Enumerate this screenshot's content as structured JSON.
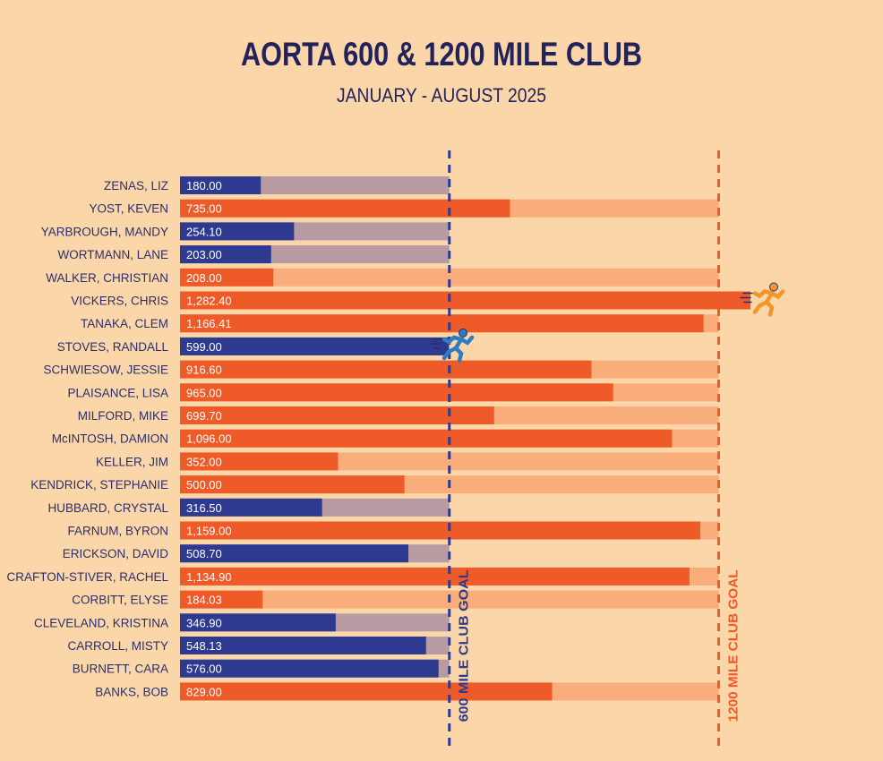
{
  "chart_data": {
    "type": "bar",
    "orientation": "horizontal",
    "title": "AORTA 600 & 1200 MILE CLUB",
    "subtitle": "JANUARY - AUGUST 2025",
    "xlim": [
      0,
      1200
    ],
    "goals": [
      {
        "value": 600,
        "label": "600 MILE CLUB GOAL",
        "color": "#2e3a8f"
      },
      {
        "value": 1200,
        "label": "1200 MILE CLUB GOAL",
        "color": "#ef5a29"
      }
    ],
    "colors": {
      "blue_fill": "#2e3a8f",
      "blue_track": "#b89aa2",
      "orange_fill": "#ef5a29",
      "orange_track": "#f9ad7a",
      "name_text": "#2b2e6e",
      "title_text": "#22225c",
      "value_text": "#ffffff",
      "runner_blue": "#2f7cc1",
      "runner_orange": "#f0962c"
    },
    "series": [
      {
        "name": "ZENAS, LIZ",
        "value": 180.0,
        "label": "180.00",
        "club": 600
      },
      {
        "name": "YOST, KEVEN",
        "value": 735.0,
        "label": "735.00",
        "club": 1200
      },
      {
        "name": "YARBROUGH, MANDY",
        "value": 254.1,
        "label": "254.10",
        "club": 600
      },
      {
        "name": "WORTMANN, LANE",
        "value": 203.0,
        "label": "203.00",
        "club": 600
      },
      {
        "name": "WALKER, CHRISTIAN",
        "value": 208.0,
        "label": "208.00",
        "club": 1200
      },
      {
        "name": "VICKERS, CHRIS",
        "value": 1282.4,
        "label": "1,282.40",
        "club": 1200
      },
      {
        "name": "TANAKA, CLEM",
        "value": 1166.41,
        "label": "1,166.41",
        "club": 1200
      },
      {
        "name": "STOVES, RANDALL",
        "value": 599.0,
        "label": "599.00",
        "club": 600
      },
      {
        "name": "SCHWIESOW, JESSIE",
        "value": 916.6,
        "label": "916.60",
        "club": 1200
      },
      {
        "name": "PLAISANCE, LISA",
        "value": 965.0,
        "label": "965.00",
        "club": 1200
      },
      {
        "name": "MILFORD, MIKE",
        "value": 699.7,
        "label": "699.70",
        "club": 1200
      },
      {
        "name": "McINTOSH, DAMION",
        "value": 1096.0,
        "label": "1,096.00",
        "club": 1200
      },
      {
        "name": "KELLER, JIM",
        "value": 352.0,
        "label": "352.00",
        "club": 1200
      },
      {
        "name": "KENDRICK, STEPHANIE",
        "value": 500.0,
        "label": "500.00",
        "club": 1200
      },
      {
        "name": "HUBBARD, CRYSTAL",
        "value": 316.5,
        "label": "316.50",
        "club": 600
      },
      {
        "name": "FARNUM, BYRON",
        "value": 1159.0,
        "label": "1,159.00",
        "club": 1200
      },
      {
        "name": "ERICKSON, DAVID",
        "value": 508.7,
        "label": "508.70",
        "club": 600
      },
      {
        "name": "CRAFTON-STIVER, RACHEL",
        "value": 1134.9,
        "label": "1,134.90",
        "club": 1200
      },
      {
        "name": "CORBITT, ELYSE",
        "value": 184.03,
        "label": "184.03",
        "club": 1200
      },
      {
        "name": "CLEVELAND, KRISTINA",
        "value": 346.9,
        "label": "346.90",
        "club": 600
      },
      {
        "name": "CARROLL, MISTY",
        "value": 548.13,
        "label": "548.13",
        "club": 600
      },
      {
        "name": "BURNETT, CARA",
        "value": 576.0,
        "label": "576.00",
        "club": 600
      },
      {
        "name": "BANKS, BOB",
        "value": 829.0,
        "label": "829.00",
        "club": 1200
      }
    ],
    "markers": [
      {
        "name": "STOVES, RANDALL",
        "icon": "runner-icon",
        "color": "blue"
      },
      {
        "name": "VICKERS, CHRIS",
        "icon": "runner-icon",
        "color": "orange"
      }
    ]
  }
}
